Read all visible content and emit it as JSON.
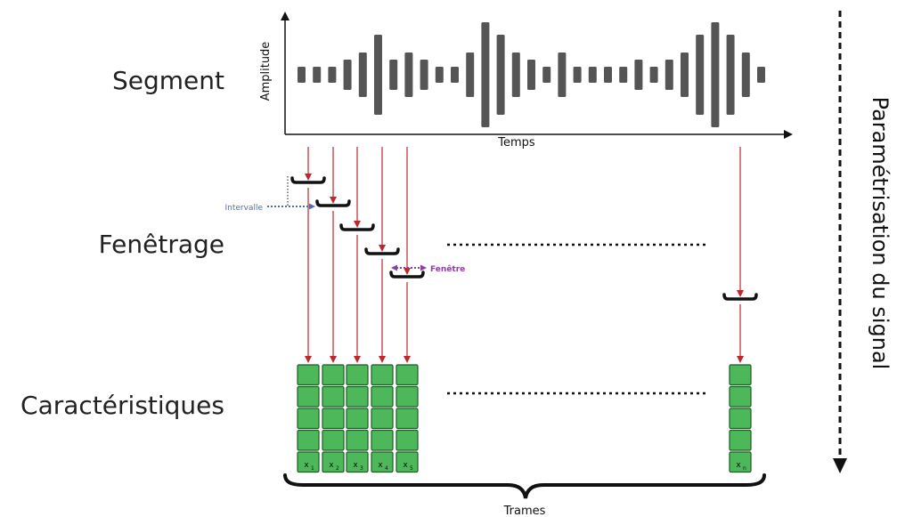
{
  "stages": {
    "segment": "Segment",
    "fenetrage": "Fenêtrage",
    "caracteristiques": "Caractéristiques"
  },
  "axes": {
    "ylabel": "Amplitude",
    "xlabel": "Temps"
  },
  "annotations": {
    "intervalle": "Intervalle",
    "fenetre": "Fenêtre",
    "trames": "Trames",
    "side_label": "Paramétrisation du signal"
  },
  "colors": {
    "bar": "#555555",
    "arrow": "#c0272d",
    "cell_fill": "#4cb85a",
    "cell_stroke": "#1f5c26",
    "intervalle": "#4a6fb5",
    "fenetre": "#8e3fa3"
  },
  "signal_bar_heights": [
    18,
    18,
    18,
    34,
    50,
    90,
    34,
    50,
    34,
    18,
    18,
    50,
    118,
    90,
    50,
    34,
    18,
    50,
    18,
    18,
    18,
    18,
    34,
    18,
    34,
    50,
    90,
    118,
    90,
    50,
    18
  ],
  "frames": [
    {
      "label": "x",
      "sub": "1"
    },
    {
      "label": "x",
      "sub": "2"
    },
    {
      "label": "x",
      "sub": "3"
    },
    {
      "label": "x",
      "sub": "4"
    },
    {
      "label": "x",
      "sub": "5"
    },
    {
      "label": "x",
      "sub": "n"
    }
  ],
  "rows_per_frame": 5
}
